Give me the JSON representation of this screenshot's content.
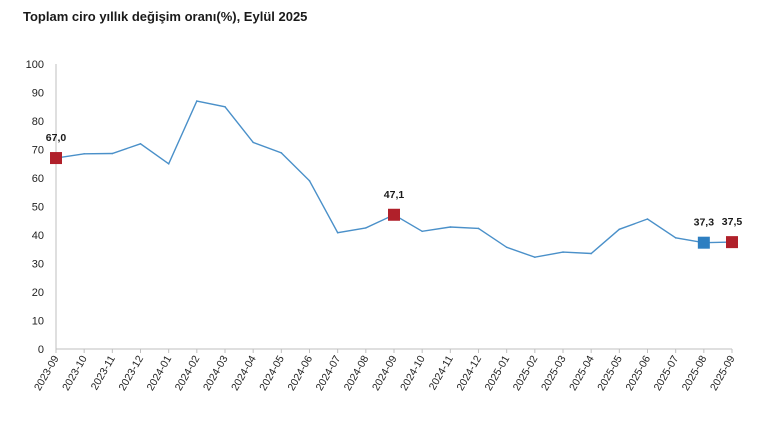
{
  "title": "Toplam ciro yıllık değişim oranı(%), Eylül 2025",
  "colors": {
    "line": "#4a90c9",
    "marker_red": "#b0202a",
    "marker_blue": "#2e7fc1",
    "axis": "#bfbfbf"
  },
  "chart_data": {
    "type": "line",
    "title": "Toplam ciro yıllık değişim oranı(%), Eylül 2025",
    "xlabel": "",
    "ylabel": "",
    "ylim": [
      0,
      100
    ],
    "yticks": [
      "0",
      "10",
      "20",
      "30",
      "40",
      "50",
      "60",
      "70",
      "80",
      "90",
      "100"
    ],
    "grid": false,
    "categories": [
      "2023-09",
      "2023-10",
      "2023-11",
      "2023-12",
      "2024-01",
      "2024-02",
      "2024-03",
      "2024-04",
      "2024-05",
      "2024-06",
      "2024-07",
      "2024-08",
      "2024-09",
      "2024-10",
      "2024-11",
      "2024-12",
      "2025-01",
      "2025-02",
      "2025-03",
      "2025-04",
      "2025-05",
      "2025-06",
      "2025-07",
      "2025-08",
      "2025-09"
    ],
    "series": [
      {
        "values": [
          67.0,
          68.5,
          68.6,
          72.0,
          65.0,
          87.0,
          85.0,
          72.5,
          68.8,
          59.0,
          40.8,
          42.5,
          47.1,
          41.3,
          42.8,
          42.3,
          35.7,
          32.2,
          34.0,
          33.5,
          42.0,
          45.6,
          39.0,
          37.3,
          37.5
        ]
      }
    ],
    "highlighted_points": [
      {
        "category": "2023-09",
        "label": "67,0",
        "marker": "red"
      },
      {
        "category": "2024-09",
        "label": "47,1",
        "marker": "red"
      },
      {
        "category": "2025-08",
        "label": "37,3",
        "marker": "blue"
      },
      {
        "category": "2025-09",
        "label": "37,5",
        "marker": "red"
      }
    ]
  }
}
